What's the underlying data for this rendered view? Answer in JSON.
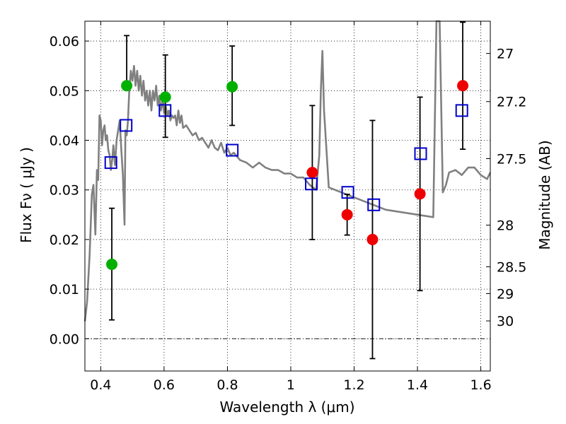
{
  "chart_data": {
    "type": "scatter",
    "xlabel": "Wavelength  λ (μm)",
    "ylabel": "Flux  Fν  ( μJy )",
    "ylabel_right": "Magnitude (AB)",
    "xlim": [
      0.35,
      1.63
    ],
    "ylim": [
      -0.0065,
      0.064
    ],
    "x_ticks": [
      0.4,
      0.6,
      0.8,
      1.0,
      1.2,
      1.4,
      1.6
    ],
    "x_tick_labels": [
      "0.4",
      "0.6",
      "0.8",
      "1",
      "1.2",
      "1.4",
      "1.6"
    ],
    "y_ticks": [
      0.0,
      0.01,
      0.02,
      0.03,
      0.04,
      0.05,
      0.06
    ],
    "y_tick_labels": [
      "0.00",
      "0.01",
      "0.02",
      "0.03",
      "0.04",
      "0.05",
      "0.06"
    ],
    "right_ticks": [
      {
        "flux": 0.0575,
        "label": "27"
      },
      {
        "flux": 0.0478,
        "label": "27.2"
      },
      {
        "flux": 0.0363,
        "label": "27.5"
      },
      {
        "flux": 0.0229,
        "label": "28"
      },
      {
        "flux": 0.0145,
        "label": "28.5"
      },
      {
        "flux": 0.0091,
        "label": "29"
      },
      {
        "flux": 0.0036,
        "label": "30"
      }
    ],
    "grid": true,
    "colors": {
      "model": "#808080",
      "green": "#00b000",
      "red": "#ee0000",
      "blue": "#0000cc",
      "errorbar": "#000000"
    },
    "series": [
      {
        "name": "model_sed",
        "style": "line",
        "x": [
          0.35,
          0.357,
          0.365,
          0.372,
          0.377,
          0.383,
          0.388,
          0.392,
          0.396,
          0.4,
          0.404,
          0.408,
          0.412,
          0.416,
          0.42,
          0.424,
          0.428,
          0.432,
          0.436,
          0.44,
          0.445,
          0.45,
          0.455,
          0.46,
          0.465,
          0.47,
          0.475,
          0.478,
          0.482,
          0.486,
          0.49,
          0.495,
          0.5,
          0.505,
          0.51,
          0.515,
          0.52,
          0.525,
          0.53,
          0.535,
          0.54,
          0.545,
          0.55,
          0.555,
          0.56,
          0.565,
          0.57,
          0.575,
          0.58,
          0.585,
          0.59,
          0.595,
          0.6,
          0.605,
          0.61,
          0.615,
          0.62,
          0.625,
          0.63,
          0.635,
          0.64,
          0.645,
          0.65,
          0.655,
          0.66,
          0.67,
          0.68,
          0.69,
          0.7,
          0.71,
          0.72,
          0.73,
          0.74,
          0.75,
          0.76,
          0.77,
          0.78,
          0.79,
          0.8,
          0.81,
          0.82,
          0.84,
          0.86,
          0.88,
          0.9,
          0.92,
          0.94,
          0.96,
          0.98,
          1.0,
          1.02,
          1.04,
          1.06,
          1.08,
          1.09,
          1.095,
          1.1,
          1.105,
          1.12,
          1.2,
          1.3,
          1.4,
          1.45,
          1.46,
          1.47,
          1.48,
          1.49,
          1.5,
          1.52,
          1.54,
          1.56,
          1.58,
          1.6,
          1.62,
          1.63
        ],
        "y": [
          0.0035,
          0.0075,
          0.017,
          0.029,
          0.031,
          0.021,
          0.034,
          0.032,
          0.045,
          0.044,
          0.039,
          0.042,
          0.043,
          0.04,
          0.041,
          0.038,
          0.037,
          0.034,
          0.036,
          0.039,
          0.035,
          0.04,
          0.042,
          0.044,
          0.038,
          0.033,
          0.023,
          0.042,
          0.041,
          0.044,
          0.05,
          0.054,
          0.052,
          0.055,
          0.051,
          0.054,
          0.05,
          0.053,
          0.049,
          0.052,
          0.048,
          0.05,
          0.047,
          0.05,
          0.046,
          0.05,
          0.048,
          0.051,
          0.047,
          0.049,
          0.046,
          0.048,
          0.0455,
          0.047,
          0.045,
          0.046,
          0.044,
          0.045,
          0.0445,
          0.045,
          0.043,
          0.046,
          0.0435,
          0.045,
          0.0425,
          0.043,
          0.042,
          0.041,
          0.0415,
          0.04,
          0.0405,
          0.0395,
          0.0385,
          0.04,
          0.0385,
          0.038,
          0.0395,
          0.0375,
          0.0385,
          0.037,
          0.0375,
          0.036,
          0.0355,
          0.0345,
          0.0355,
          0.0345,
          0.034,
          0.034,
          0.0333,
          0.0333,
          0.0325,
          0.0325,
          0.031,
          0.03,
          0.037,
          0.05,
          0.058,
          0.046,
          0.0305,
          0.0285,
          0.026,
          0.025,
          0.0245,
          0.065,
          0.065,
          0.0295,
          0.031,
          0.0335,
          0.034,
          0.033,
          0.0345,
          0.0345,
          0.033,
          0.0322,
          0.0335
        ]
      },
      {
        "name": "green_detections",
        "style": "circle",
        "x": [
          0.435,
          0.482,
          0.604,
          0.815
        ],
        "y": [
          0.015,
          0.051,
          0.0487,
          0.0508
        ],
        "yerr_low": [
          0.0112,
          null,
          0.0081,
          0.0078
        ],
        "yerr_high": [
          0.0113,
          0.0101,
          0.0085,
          0.0082
        ]
      },
      {
        "name": "red_detections",
        "style": "circle",
        "x": [
          1.068,
          1.178,
          1.258,
          1.408,
          1.543
        ],
        "y": [
          0.0335,
          0.025,
          0.02,
          0.0292,
          0.051
        ],
        "yerr_low": [
          0.0135,
          0.0041,
          0.024,
          0.0195,
          0.0128
        ],
        "yerr_high": [
          0.0135,
          0.0041,
          0.024,
          0.0195,
          0.0128
        ]
      },
      {
        "name": "model_photometry",
        "style": "square",
        "x": [
          0.432,
          0.48,
          0.603,
          0.815,
          1.065,
          1.18,
          1.262,
          1.41,
          1.54
        ],
        "y": [
          0.0355,
          0.043,
          0.046,
          0.038,
          0.0312,
          0.0295,
          0.027,
          0.0373,
          0.046
        ]
      }
    ]
  }
}
